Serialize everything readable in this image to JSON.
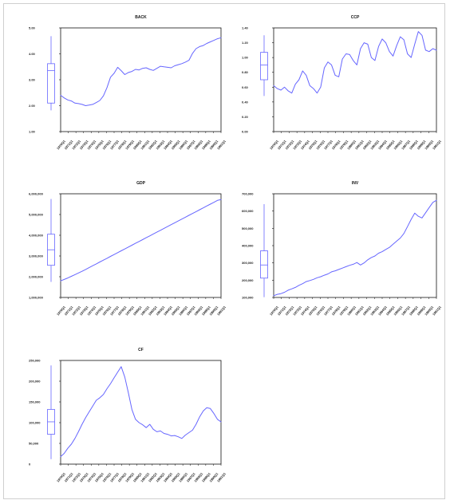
{
  "chart_data": [
    {
      "type": "line",
      "title": "BACK",
      "xlabel": "",
      "ylabel": "",
      "ylim": [
        1.0,
        5.0
      ],
      "y_ticks": [
        1.0,
        2.0,
        3.0,
        4.0,
        5.0
      ],
      "y_tick_labels": [
        "1.00",
        "2.00",
        "3.00",
        "4.00",
        "5.00"
      ],
      "grid": false,
      "legend": "none",
      "x_tick_labels": [
        "1970Q1",
        "1971Q1",
        "1972Q1",
        "1973Q1",
        "1974Q1",
        "1975Q1",
        "1976Q1",
        "1977Q1",
        "1978Q1",
        "1979Q1",
        "1980Q1",
        "1981Q1",
        "1982Q1",
        "1983Q1",
        "1984Q1",
        "1985Q1",
        "1986Q1",
        "1987Q1",
        "1988Q1",
        "1989Q1",
        "1990Q1",
        "1991Q1"
      ],
      "values": [
        2.4,
        2.3,
        2.22,
        2.18,
        2.1,
        2.08,
        2.05,
        2.0,
        2.02,
        2.05,
        2.12,
        2.2,
        2.38,
        2.7,
        3.1,
        3.25,
        3.48,
        3.35,
        3.2,
        3.28,
        3.32,
        3.4,
        3.38,
        3.44,
        3.46,
        3.4,
        3.36,
        3.44,
        3.52,
        3.5,
        3.48,
        3.46,
        3.54,
        3.58,
        3.62,
        3.68,
        3.75,
        4.02,
        4.2,
        4.28,
        4.32,
        4.4,
        4.46,
        4.52,
        4.58,
        4.62
      ],
      "box": {
        "min": 1.82,
        "q1": 2.1,
        "median": 3.35,
        "q3": 3.62,
        "max": 4.68
      },
      "series": [
        {
          "name": "",
          "color": "#6666ff"
        }
      ]
    },
    {
      "type": "line",
      "title": "CCP",
      "xlabel": "",
      "ylabel": "",
      "ylim": [
        0.0,
        1.4
      ],
      "y_ticks": [
        0.0,
        0.2,
        0.4,
        0.6,
        0.8,
        1.0,
        1.2,
        1.4
      ],
      "y_tick_labels": [
        "0.00",
        "0.20",
        "0.40",
        "0.60",
        "0.80",
        "1.00",
        "1.20",
        "1.40"
      ],
      "grid": false,
      "legend": "none",
      "x_tick_labels": [
        "1970Q1",
        "1971Q1",
        "1972Q1",
        "1973Q1",
        "1974Q1",
        "1975Q1",
        "1976Q1",
        "1977Q1",
        "1978Q1",
        "1979Q1",
        "1980Q1",
        "1981Q1",
        "1982Q1",
        "1983Q1",
        "1984Q1",
        "1985Q1",
        "1986Q1",
        "1987Q1",
        "1988Q1",
        "1989Q1",
        "1990Q1",
        "1991Q1"
      ],
      "values": [
        0.62,
        0.58,
        0.56,
        0.6,
        0.55,
        0.52,
        0.64,
        0.7,
        0.82,
        0.76,
        0.62,
        0.58,
        0.52,
        0.6,
        0.86,
        0.94,
        0.9,
        0.76,
        0.74,
        0.98,
        1.05,
        1.04,
        0.96,
        0.9,
        1.12,
        1.2,
        1.18,
        1.0,
        0.96,
        1.15,
        1.25,
        1.2,
        1.08,
        1.02,
        1.16,
        1.28,
        1.24,
        1.05,
        1.0,
        1.18,
        1.35,
        1.3,
        1.1,
        1.08,
        1.12,
        1.1
      ],
      "box": {
        "min": 0.48,
        "q1": 0.7,
        "median": 0.9,
        "q3": 1.07,
        "max": 1.3
      },
      "series": [
        {
          "name": "",
          "color": "#6666ff"
        }
      ]
    },
    {
      "type": "line",
      "title": "GDP",
      "xlabel": "",
      "ylabel": "",
      "ylim": [
        1000000,
        6000000
      ],
      "y_ticks": [
        1000000,
        2000000,
        3000000,
        4000000,
        5000000,
        6000000
      ],
      "y_tick_labels": [
        "1,000,000",
        "2,000,000",
        "3,000,000",
        "4,000,000",
        "5,000,000",
        "6,000,000"
      ],
      "grid": false,
      "legend": "none",
      "x_tick_labels": [
        "1970Q1",
        "1971Q1",
        "1972Q1",
        "1973Q1",
        "1974Q1",
        "1975Q1",
        "1976Q1",
        "1977Q1",
        "1978Q1",
        "1979Q1",
        "1980Q1",
        "1981Q1",
        "1982Q1",
        "1983Q1",
        "1984Q1",
        "1985Q1",
        "1986Q1",
        "1987Q1",
        "1988Q1",
        "1989Q1",
        "1990Q1",
        "1991Q1"
      ],
      "values": [
        1800000,
        1870000,
        1940000,
        2020000,
        2100000,
        2180000,
        2260000,
        2350000,
        2440000,
        2530000,
        2620000,
        2710000,
        2800000,
        2890000,
        2980000,
        3070000,
        3160000,
        3250000,
        3340000,
        3430000,
        3520000,
        3610000,
        3700000,
        3790000,
        3880000,
        3970000,
        4060000,
        4150000,
        4240000,
        4330000,
        4420000,
        4510000,
        4600000,
        4690000,
        4780000,
        4870000,
        4960000,
        5050000,
        5140000,
        5230000,
        5320000,
        5410000,
        5500000,
        5590000,
        5680000,
        5720000
      ],
      "box": {
        "min": 1750000,
        "q1": 2550000,
        "median": 3300000,
        "q3": 4050000,
        "max": 5750000
      },
      "series": [
        {
          "name": "",
          "color": "#6666ff"
        }
      ]
    },
    {
      "type": "line",
      "title": "INV",
      "xlabel": "",
      "ylabel": "",
      "ylim": [
        100000,
        700000
      ],
      "y_ticks": [
        100000,
        200000,
        300000,
        400000,
        500000,
        600000,
        700000
      ],
      "y_tick_labels": [
        "100,000",
        "200,000",
        "300,000",
        "400,000",
        "500,000",
        "600,000",
        "700,000"
      ],
      "grid": false,
      "legend": "none",
      "x_tick_labels": [
        "1970Q1",
        "1971Q1",
        "1972Q1",
        "1973Q1",
        "1974Q1",
        "1975Q1",
        "1976Q1",
        "1977Q1",
        "1978Q1",
        "1979Q1",
        "1980Q1",
        "1981Q1",
        "1982Q1",
        "1983Q1",
        "1984Q1",
        "1985Q1",
        "1986Q1",
        "1987Q1",
        "1988Q1",
        "1989Q1",
        "1990Q1",
        "1991Q1"
      ],
      "values": [
        110000,
        118000,
        122000,
        130000,
        142000,
        150000,
        158000,
        170000,
        180000,
        192000,
        198000,
        205000,
        214000,
        220000,
        229000,
        236000,
        248000,
        254000,
        262000,
        270000,
        278000,
        286000,
        292000,
        302000,
        288000,
        300000,
        318000,
        331000,
        340000,
        356000,
        365000,
        378000,
        390000,
        408000,
        426000,
        444000,
        470000,
        510000,
        552000,
        588000,
        570000,
        560000,
        590000,
        620000,
        650000,
        662000
      ],
      "box": {
        "min": 102000,
        "q1": 212000,
        "median": 288000,
        "q3": 370000,
        "max": 640000
      },
      "series": [
        {
          "name": "",
          "color": "#6666ff"
        }
      ]
    },
    {
      "type": "line",
      "title": "CF",
      "xlabel": "",
      "ylabel": "",
      "ylim": [
        0,
        250000
      ],
      "y_ticks": [
        0,
        50000,
        100000,
        150000,
        200000,
        250000
      ],
      "y_tick_labels": [
        "0",
        "50,000",
        "100,000",
        "150,000",
        "200,000",
        "250,000"
      ],
      "grid": false,
      "legend": "none",
      "x_tick_labels": [
        "1970Q1",
        "1971Q1",
        "1972Q1",
        "1973Q1",
        "1974Q1",
        "1975Q1",
        "1976Q1",
        "1977Q1",
        "1978Q1",
        "1979Q1",
        "1980Q1",
        "1981Q1",
        "1982Q1",
        "1983Q1",
        "1984Q1",
        "1985Q1",
        "1986Q1",
        "1987Q1",
        "1988Q1",
        "1989Q1",
        "1990Q1",
        "1991Q1"
      ],
      "values": [
        18000,
        26000,
        38000,
        48000,
        62000,
        78000,
        96000,
        112000,
        126000,
        140000,
        154000,
        160000,
        168000,
        182000,
        194000,
        208000,
        222000,
        235000,
        210000,
        172000,
        132000,
        108000,
        100000,
        95000,
        88000,
        96000,
        84000,
        78000,
        80000,
        74000,
        72000,
        68000,
        69000,
        66000,
        62000,
        70000,
        76000,
        82000,
        96000,
        114000,
        128000,
        136000,
        134000,
        122000,
        108000,
        102000
      ],
      "box": {
        "min": 12000,
        "q1": 72000,
        "median": 102000,
        "q3": 132000,
        "max": 238000
      },
      "series": [
        {
          "name": "",
          "color": "#6666ff"
        }
      ]
    }
  ]
}
